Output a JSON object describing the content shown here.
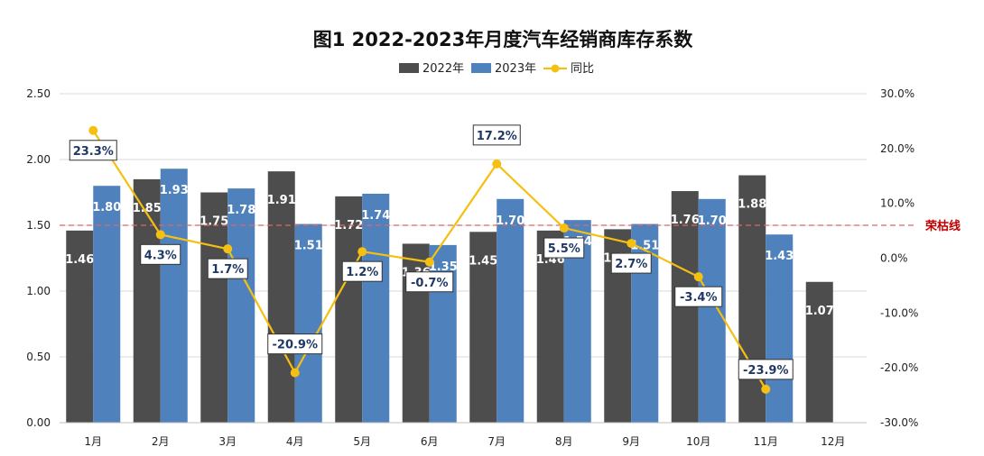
{
  "chart_data": {
    "type": "bar",
    "title": "图1  2022-2023年月度汽车经销商库存系数",
    "categories": [
      "1月",
      "2月",
      "3月",
      "4月",
      "5月",
      "6月",
      "7月",
      "8月",
      "9月",
      "10月",
      "11月",
      "12月"
    ],
    "series": [
      {
        "name": "2022年",
        "kind": "bar",
        "axis": "left",
        "color": "#4d4d4d",
        "values": [
          1.46,
          1.85,
          1.75,
          1.91,
          1.72,
          1.36,
          1.45,
          1.46,
          1.47,
          1.76,
          1.88,
          1.07
        ]
      },
      {
        "name": "2023年",
        "kind": "bar",
        "axis": "left",
        "color": "#4f81bd",
        "values": [
          1.8,
          1.93,
          1.78,
          1.51,
          1.74,
          1.35,
          1.7,
          1.54,
          1.51,
          1.7,
          1.43,
          null
        ]
      },
      {
        "name": "同比",
        "kind": "line",
        "axis": "right",
        "color": "#f5c011",
        "values": [
          23.3,
          4.3,
          1.7,
          -20.9,
          1.2,
          -0.7,
          17.2,
          5.5,
          2.7,
          -3.4,
          -23.9,
          null
        ]
      }
    ],
    "bar_labels_2022": [
      "1.46",
      "1.85",
      "1.75",
      "1.91",
      "1.72",
      "1.36",
      "1.45",
      "1.46",
      "1.47",
      "1.76",
      "1.88",
      "1.07"
    ],
    "bar_labels_2023": [
      "1.80",
      "1.93",
      "1.78",
      "1.51",
      "1.74",
      "1.35",
      "1.70",
      "1.54",
      "1.51",
      "1.70",
      "1.43",
      ""
    ],
    "pct_labels": [
      "23.3%",
      "4.3%",
      "1.7%",
      "-20.9%",
      "1.2%",
      "-0.7%",
      "17.2%",
      "5.5%",
      "2.7%",
      "-3.4%",
      "-23.9%",
      ""
    ],
    "left_ticks": [
      "0.00",
      "0.50",
      "1.00",
      "1.50",
      "2.00",
      "2.50"
    ],
    "right_ticks": [
      "-30.0%",
      "-20.0%",
      "-10.0%",
      "0.0%",
      "10.0%",
      "20.0%",
      "30.0%"
    ],
    "ylim_left": [
      0,
      2.5
    ],
    "ylim_right": [
      -30,
      30
    ],
    "reference_line": {
      "value": 1.5,
      "label": "荣枯线",
      "color": "#e06666"
    },
    "legend_position": "top-center",
    "grid": true
  }
}
